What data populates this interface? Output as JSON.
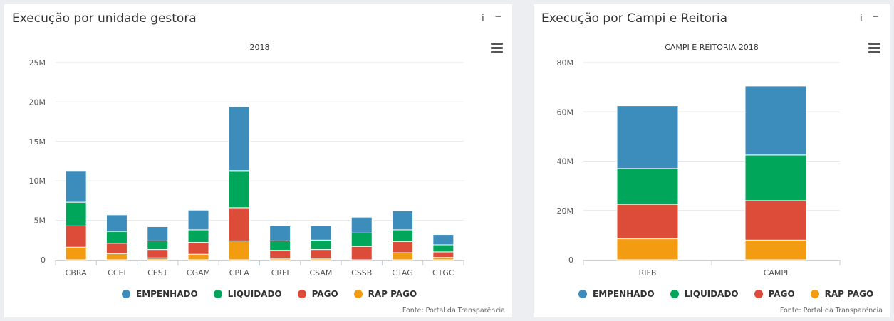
{
  "panels": [
    {
      "title": "Execução por unidade gestora",
      "source": "Fonte: Portal da Transparência",
      "chart_data": {
        "type": "bar",
        "stacked": true,
        "title": "2018",
        "categories": [
          "CBRA",
          "CCEI",
          "CEST",
          "CGAM",
          "CPLA",
          "CRFI",
          "CSAM",
          "CSSB",
          "CTAG",
          "CTGC"
        ],
        "y_ticks": [
          "0",
          "5M",
          "10M",
          "15M",
          "20M",
          "25M"
        ],
        "ylim": [
          0,
          25000000
        ],
        "grid": true,
        "legend": "bottom",
        "series": [
          {
            "name": "RAP PAGO",
            "color": "#f39c12",
            "values": [
              1600000,
              800000,
              250000,
              700000,
              2400000,
              200000,
              200000,
              0,
              900000,
              300000
            ]
          },
          {
            "name": "PAGO",
            "color": "#dd4b39",
            "values": [
              2700000,
              1300000,
              1050000,
              1500000,
              4200000,
              1000000,
              1100000,
              1700000,
              1400000,
              700000
            ]
          },
          {
            "name": "LIQUIDADO",
            "color": "#00a65a",
            "values": [
              3000000,
              1500000,
              1100000,
              1600000,
              4700000,
              1200000,
              1200000,
              1700000,
              1500000,
              900000
            ]
          },
          {
            "name": "EMPENHADO",
            "color": "#3c8dbc",
            "values": [
              4000000,
              2100000,
              1800000,
              2500000,
              8100000,
              1900000,
              1800000,
              2000000,
              2400000,
              1300000
            ]
          }
        ]
      }
    },
    {
      "title": "Execução por Campi e Reitoria",
      "source": "Fonte: Portal da Transparência",
      "chart_data": {
        "type": "bar",
        "stacked": true,
        "title": "CAMPI E REITORIA 2018",
        "categories": [
          "RIFB",
          "CAMPI"
        ],
        "y_ticks": [
          "0",
          "20M",
          "40M",
          "60M",
          "80M"
        ],
        "ylim": [
          0,
          80000000
        ],
        "grid": true,
        "legend": "bottom",
        "series": [
          {
            "name": "RAP PAGO",
            "color": "#f39c12",
            "values": [
              8500000,
              8000000
            ]
          },
          {
            "name": "PAGO",
            "color": "#dd4b39",
            "values": [
              14000000,
              16000000
            ]
          },
          {
            "name": "LIQUIDADO",
            "color": "#00a65a",
            "values": [
              14500000,
              18500000
            ]
          },
          {
            "name": "EMPENHADO",
            "color": "#3c8dbc",
            "values": [
              25500000,
              28000000
            ]
          }
        ]
      }
    }
  ],
  "legend_order": [
    "EMPENHADO",
    "LIQUIDADO",
    "PAGO",
    "RAP PAGO"
  ],
  "controls": {
    "info_icon": "info-icon",
    "collapse_icon": "minus-icon",
    "menu_icon": "hamburger-menu-icon"
  }
}
